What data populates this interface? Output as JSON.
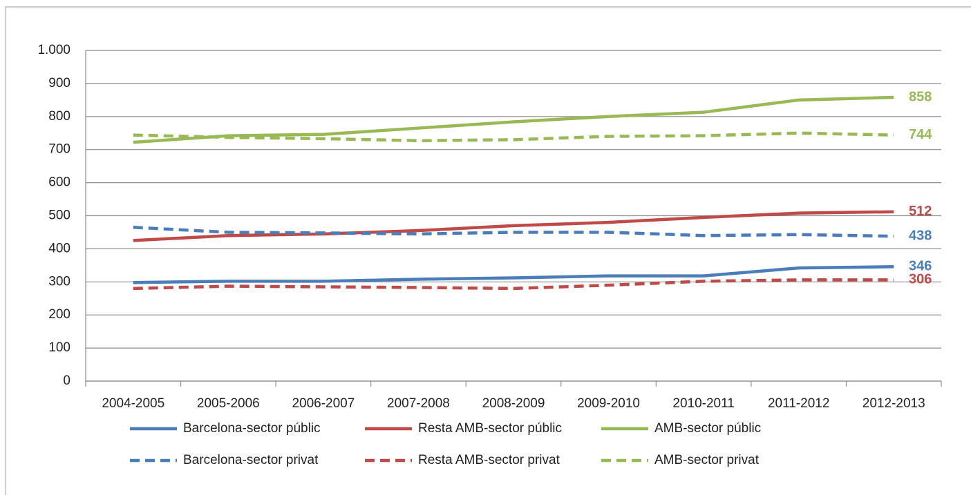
{
  "chart_data": {
    "type": "line",
    "categories": [
      "2004-2005",
      "2005-2006",
      "2006-2007",
      "2007-2008",
      "2008-2009",
      "2009-2010",
      "2010-2011",
      "2011-2012",
      "2012-2013"
    ],
    "series": [
      {
        "name": "Barcelona-sector públic",
        "color": "#4a7ebb",
        "dash": false,
        "values": [
          298,
          302,
          302,
          308,
          312,
          318,
          318,
          342,
          346
        ]
      },
      {
        "name": "Resta AMB-sector públic",
        "color": "#be4b48",
        "dash": false,
        "values": [
          425,
          440,
          445,
          455,
          470,
          480,
          495,
          508,
          512
        ]
      },
      {
        "name": "AMB-sector públic",
        "color": "#98b954",
        "dash": false,
        "values": [
          722,
          742,
          746,
          765,
          784,
          800,
          813,
          850,
          858
        ]
      },
      {
        "name": "Barcelona-sector privat",
        "color": "#4a7ebb",
        "dash": true,
        "values": [
          465,
          450,
          448,
          445,
          450,
          450,
          440,
          443,
          438
        ]
      },
      {
        "name": "Resta AMB-sector privat",
        "color": "#be4b48",
        "dash": true,
        "values": [
          280,
          287,
          285,
          283,
          280,
          290,
          302,
          306,
          306
        ]
      },
      {
        "name": "AMB-sector privat",
        "color": "#98b954",
        "dash": true,
        "values": [
          744,
          737,
          733,
          727,
          730,
          740,
          742,
          750,
          744
        ]
      }
    ],
    "ylim": [
      0,
      1000
    ],
    "yticks": [
      0,
      100,
      200,
      300,
      400,
      500,
      600,
      700,
      800,
      900,
      {
        "value": 1000,
        "label": "1.000"
      }
    ],
    "grid": true
  }
}
